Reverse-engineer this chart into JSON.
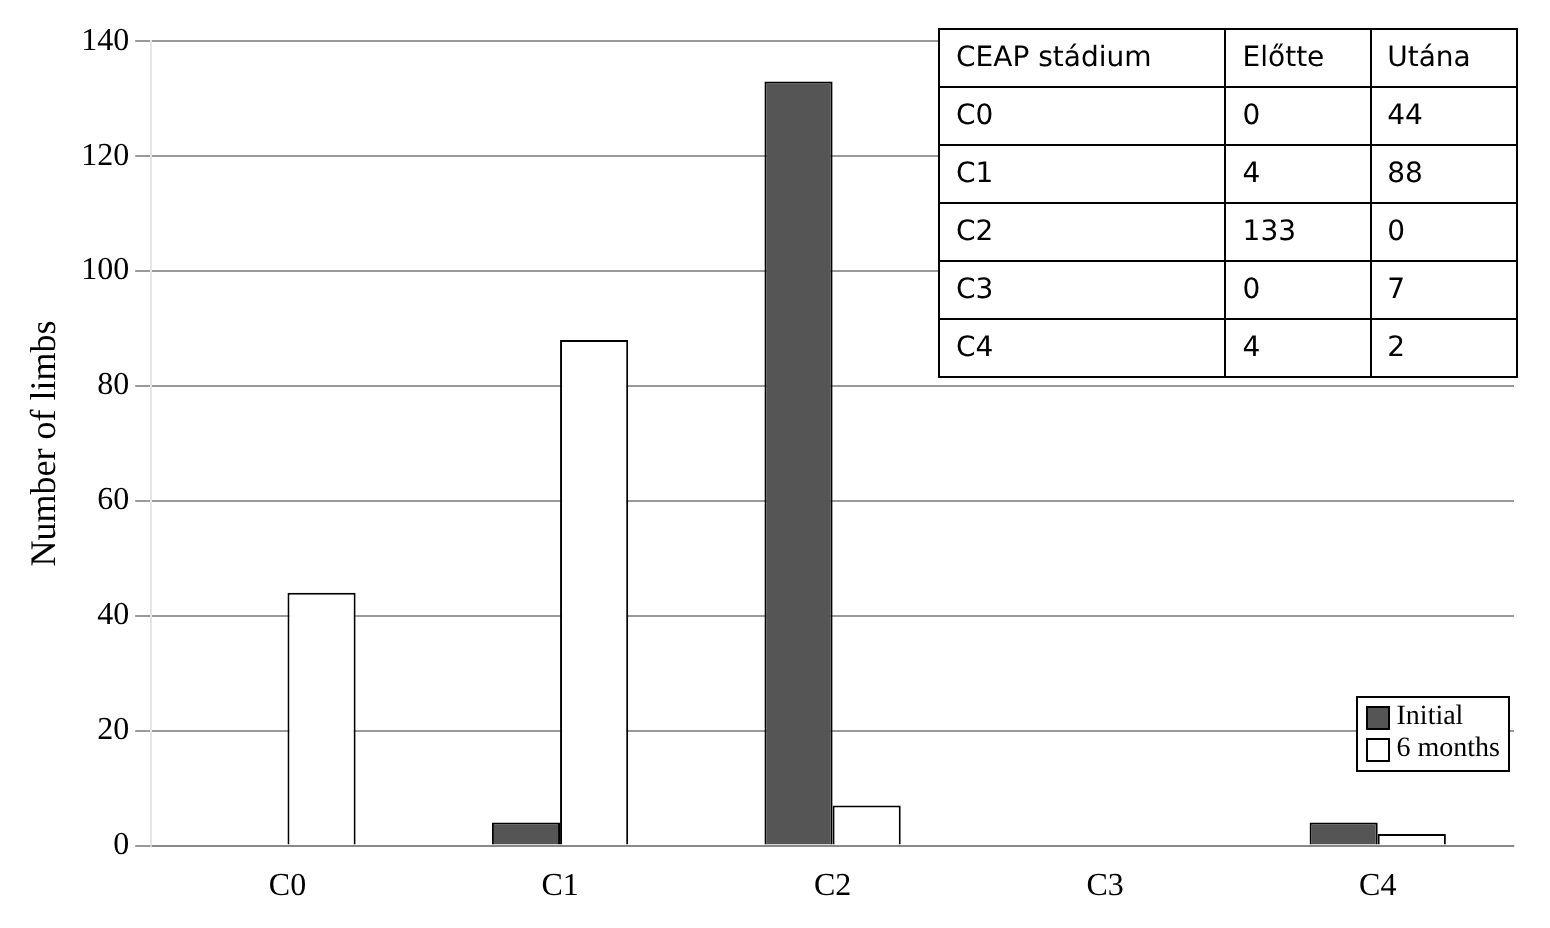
{
  "chart_data": {
    "type": "bar",
    "ylabel": "Number of limbs",
    "categories": [
      "C0",
      "C1",
      "C2",
      "C3",
      "C4"
    ],
    "series": [
      {
        "name": "Initial",
        "color": "#555555",
        "values": [
          0,
          4,
          133,
          0,
          4
        ]
      },
      {
        "name": "6 months",
        "color": "#ffffff",
        "values": [
          44,
          88,
          7,
          0,
          2
        ]
      }
    ],
    "ylim": [
      0,
      140
    ],
    "yticks": [
      0,
      20,
      40,
      60,
      80,
      100,
      120,
      140
    ],
    "grid": "y",
    "legend": "bottom right",
    "annotations": [
      "CEAP stádium",
      "Előtte",
      "Utána",
      "C0",
      "0",
      "44",
      "C1",
      "4",
      "88",
      "C2",
      "133",
      "0",
      "C3",
      "0",
      "7",
      "C4",
      "4",
      "2"
    ]
  }
}
